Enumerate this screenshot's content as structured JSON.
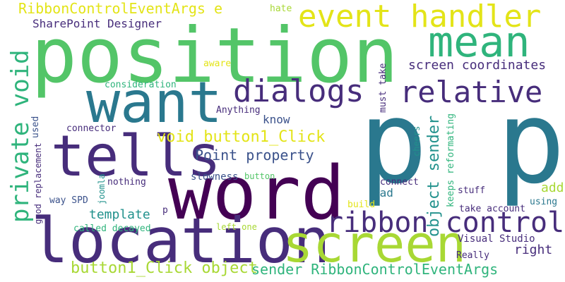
{
  "palette": {
    "yellow": "#e3e418",
    "lime": "#a8d834",
    "green": "#53c568",
    "mint": "#2fb47c",
    "teal": "#21918c",
    "steel": "#2a788e",
    "navy": "#3b528b",
    "purple": "#472d7b",
    "deep": "#440154"
  },
  "words": [
    {
      "id": "w1",
      "text": "p p",
      "color": "steel"
    },
    {
      "id": "w2",
      "text": "position",
      "color": "green"
    },
    {
      "id": "w3",
      "text": "word",
      "color": "deep"
    },
    {
      "id": "w4",
      "text": "location",
      "color": "purple"
    },
    {
      "id": "w5",
      "text": "screen",
      "color": "lime"
    },
    {
      "id": "w6",
      "text": "want",
      "color": "steel"
    },
    {
      "id": "w7",
      "text": "tells",
      "color": "purple"
    },
    {
      "id": "w8",
      "text": "mean",
      "color": "mint"
    },
    {
      "id": "w9",
      "text": "event handler",
      "color": "yellow"
    },
    {
      "id": "w10",
      "text": "dialogs",
      "color": "purple"
    },
    {
      "id": "w11",
      "text": "relative",
      "color": "purple"
    },
    {
      "id": "w12",
      "text": "ribbon control",
      "color": "purple"
    },
    {
      "id": "w13",
      "text": "private void",
      "color": "mint"
    },
    {
      "id": "w14",
      "text": "object sender",
      "color": "teal"
    },
    {
      "id": "w15",
      "text": "button1_Click object",
      "color": "lime"
    },
    {
      "id": "w16",
      "text": "sender RibbonControlEventArgs",
      "color": "mint"
    },
    {
      "id": "w17",
      "text": "void button1_Click",
      "color": "yellow"
    },
    {
      "id": "w18",
      "text": "Point property",
      "color": "navy"
    },
    {
      "id": "w19",
      "text": "screen coordinates",
      "color": "purple"
    },
    {
      "id": "w20",
      "text": "RibbonControlEventArgs e",
      "color": "yellow"
    },
    {
      "id": "w21",
      "text": "SharePoint Designer",
      "color": "purple"
    },
    {
      "id": "w22",
      "text": "template",
      "color": "teal"
    },
    {
      "id": "w23",
      "text": "right",
      "color": "purple"
    },
    {
      "id": "w24",
      "text": "add",
      "color": "lime"
    },
    {
      "id": "w25",
      "text": "know",
      "color": "navy"
    },
    {
      "id": "w26",
      "text": "bad",
      "color": "steel"
    },
    {
      "id": "w27",
      "text": "consideration",
      "color": "mint"
    },
    {
      "id": "w28",
      "text": "Anything",
      "color": "purple"
    },
    {
      "id": "w29",
      "text": "connector",
      "color": "purple"
    },
    {
      "id": "w30",
      "text": "used",
      "color": "navy"
    },
    {
      "id": "w31",
      "text": "good replacement",
      "color": "purple"
    },
    {
      "id": "w32",
      "text": "joomla",
      "color": "teal"
    },
    {
      "id": "w33",
      "text": "way SPD",
      "color": "navy"
    },
    {
      "id": "w34",
      "text": "nothing",
      "color": "purple"
    },
    {
      "id": "w35",
      "text": "slowness",
      "color": "navy"
    },
    {
      "id": "w36",
      "text": "button",
      "color": "green"
    },
    {
      "id": "w37",
      "text": "connect",
      "color": "purple"
    },
    {
      "id": "w38",
      "text": "keeps reformating",
      "color": "mint"
    },
    {
      "id": "w39",
      "text": "cheers",
      "color": "teal"
    },
    {
      "id": "w40",
      "text": "Visual Studio",
      "color": "purple"
    },
    {
      "id": "w41",
      "text": "must take",
      "color": "purple"
    },
    {
      "id": "w42",
      "text": "take account",
      "color": "purple"
    },
    {
      "id": "w43",
      "text": "using",
      "color": "steel"
    },
    {
      "id": "w44",
      "text": "stuff",
      "color": "purple"
    },
    {
      "id": "w45",
      "text": "Really",
      "color": "purple"
    },
    {
      "id": "w46",
      "text": "called decayed",
      "color": "mint"
    },
    {
      "id": "w47",
      "text": "left one",
      "color": "lime"
    },
    {
      "id": "w48",
      "text": "build",
      "color": "yellow"
    },
    {
      "id": "w49",
      "text": "p",
      "color": "purple"
    },
    {
      "id": "w50",
      "text": "aware",
      "color": "yellow"
    },
    {
      "id": "w51",
      "text": "hate",
      "color": "lime"
    }
  ]
}
